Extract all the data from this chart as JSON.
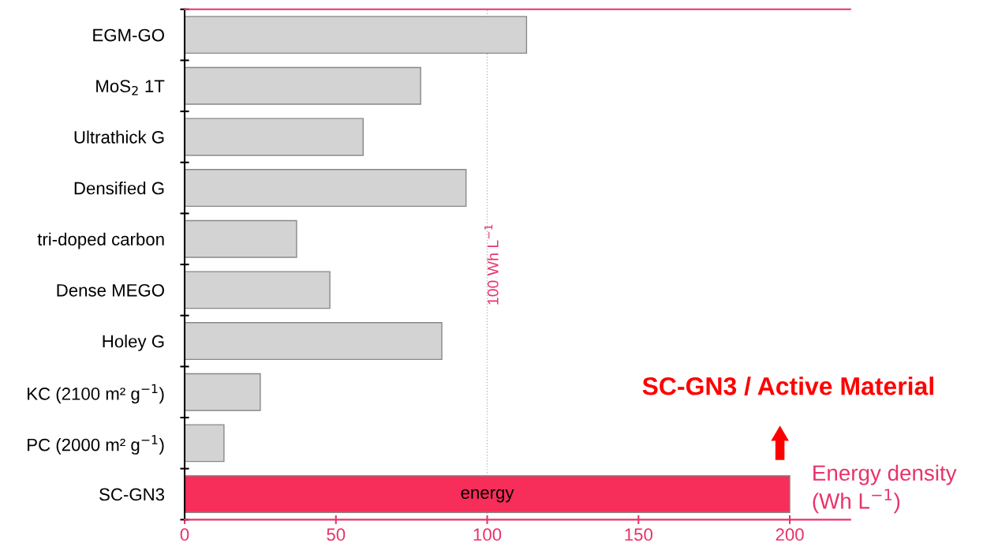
{
  "chart_data": {
    "type": "bar",
    "orientation": "horizontal",
    "categories": [
      "EGM-GO",
      "MoS$_{2}$ 1T",
      "Ultrathick G",
      "Densified G",
      "tri-doped carbon",
      "Dense MEGO",
      "Holey G",
      "KC (2100 m² g$^{−1}$)",
      "PC (2000 m² g$^{−1}$)",
      "SC-GN3"
    ],
    "values": [
      113,
      78,
      59,
      93,
      37,
      48,
      85,
      25,
      13,
      200
    ],
    "colors": [
      "#d3d3d3",
      "#d3d3d3",
      "#d3d3d3",
      "#d3d3d3",
      "#d3d3d3",
      "#d3d3d3",
      "#d3d3d3",
      "#d3d3d3",
      "#d3d3d3",
      "#f72d5a"
    ],
    "xlim": [
      0,
      220
    ],
    "xticks": [
      0,
      50,
      100,
      150,
      200
    ],
    "xlabel": "Energy density (Wh L$^{−1}$)",
    "ref_lines": [
      {
        "axis": "x",
        "value": 100,
        "label": "100 Wh L$^{−1}$",
        "color": "#bbbbbb",
        "line_style": "dotted"
      }
    ],
    "annotations": [
      {
        "text": "energy",
        "x": 100,
        "y": "SC-GN3"
      },
      "SC-GN3 / Active Material"
    ],
    "grid": false,
    "legend": false
  }
}
